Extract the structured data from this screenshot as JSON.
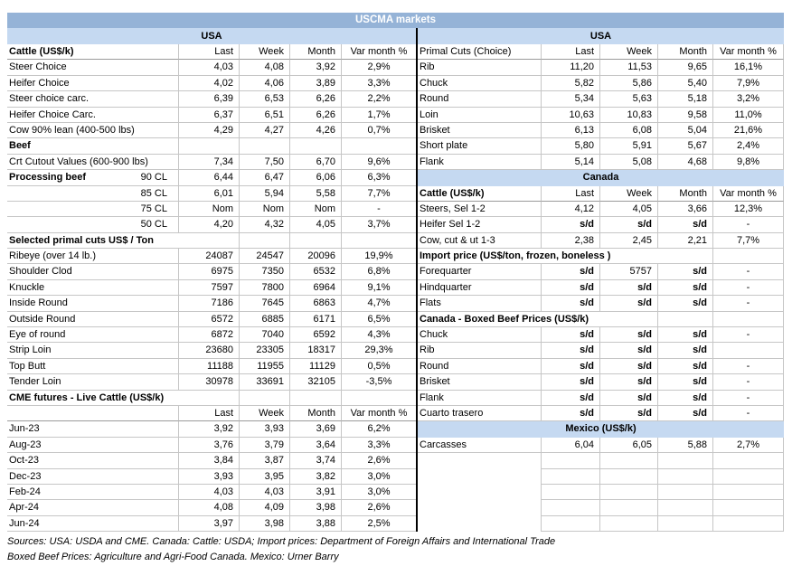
{
  "title": "USCMA markets",
  "colors": {
    "title_bg": "#95B3D7",
    "band_bg": "#C5D9F1",
    "grid": "#C6C6C6",
    "divider": "#000000"
  },
  "column_headers": [
    "Last",
    "Week",
    "Month",
    "Var month %"
  ],
  "left": {
    "band": "USA",
    "rows": [
      {
        "t": "cols",
        "label": "Cattle (US$/k)",
        "bold": true
      },
      {
        "t": "data",
        "label": "Steer Choice",
        "cells": [
          "4,03",
          "4,08",
          "3,92",
          "2,9%"
        ]
      },
      {
        "t": "data",
        "label": "Heifer Choice",
        "cells": [
          "4,02",
          "4,06",
          "3,89",
          "3,3%"
        ]
      },
      {
        "t": "data",
        "label": "Steer choice carc.",
        "cells": [
          "6,39",
          "6,53",
          "6,26",
          "2,2%"
        ]
      },
      {
        "t": "data",
        "label": "Heifer Choice Carc.",
        "cells": [
          "6,37",
          "6,51",
          "6,26",
          "1,7%"
        ]
      },
      {
        "t": "data",
        "label": "Cow 90% lean (400-500 lbs)",
        "cells": [
          "4,29",
          "4,27",
          "4,26",
          "0,7%"
        ]
      },
      {
        "t": "section",
        "label": "Beef",
        "span": 0
      },
      {
        "t": "data",
        "label": "Crt Cutout Values (600-900 lbs)",
        "cells": [
          "7,34",
          "7,50",
          "6,70",
          "9,6%"
        ]
      },
      {
        "t": "data",
        "label": "Processing beef",
        "bold": true,
        "sub": "90 CL",
        "cells": [
          "6,44",
          "6,47",
          "6,06",
          "6,3%"
        ]
      },
      {
        "t": "data",
        "label": "",
        "sub": "85 CL",
        "cells": [
          "6,01",
          "5,94",
          "5,58",
          "7,7%"
        ]
      },
      {
        "t": "data",
        "label": "",
        "sub": "75 CL",
        "cells": [
          "Nom",
          "Nom",
          "Nom",
          "-"
        ]
      },
      {
        "t": "data",
        "label": "",
        "sub": "50 CL",
        "cells": [
          "4,20",
          "4,32",
          "4,05",
          "3,7%"
        ]
      },
      {
        "t": "section",
        "label": "Selected primal cuts US$ / Ton",
        "span": 1
      },
      {
        "t": "data",
        "label": "Ribeye (over 14 lb.)",
        "cells": [
          "24087",
          "24547",
          "20096",
          "19,9%"
        ]
      },
      {
        "t": "data",
        "label": "Shoulder Clod",
        "cells": [
          "6975",
          "7350",
          "6532",
          "6,8%"
        ]
      },
      {
        "t": "data",
        "label": "Knuckle",
        "cells": [
          "7597",
          "7800",
          "6964",
          "9,1%"
        ]
      },
      {
        "t": "data",
        "label": "Inside Round",
        "cells": [
          "7186",
          "7645",
          "6863",
          "4,7%"
        ]
      },
      {
        "t": "data",
        "label": "Outside Round",
        "cells": [
          "6572",
          "6885",
          "6171",
          "6,5%"
        ]
      },
      {
        "t": "data",
        "label": "Eye of round",
        "cells": [
          "6872",
          "7040",
          "6592",
          "4,3%"
        ]
      },
      {
        "t": "data",
        "label": "Strip Loin",
        "cells": [
          "23680",
          "23305",
          "18317",
          "29,3%"
        ]
      },
      {
        "t": "data",
        "label": "Top Butt",
        "cells": [
          "11188",
          "11955",
          "11129",
          "0,5%"
        ]
      },
      {
        "t": "data",
        "label": "Tender Loin",
        "cells": [
          "30978",
          "33691",
          "32105",
          "-3,5%"
        ]
      },
      {
        "t": "section",
        "label": "CME futures - Live Cattle (US$/k)",
        "span": 1
      },
      {
        "t": "cols",
        "label": "",
        "bold": false
      },
      {
        "t": "data",
        "label": "Jun-23",
        "cells": [
          "3,92",
          "3,93",
          "3,69",
          "6,2%"
        ]
      },
      {
        "t": "data",
        "label": "Aug-23",
        "cells": [
          "3,76",
          "3,79",
          "3,64",
          "3,3%"
        ]
      },
      {
        "t": "data",
        "label": "Oct-23",
        "cells": [
          "3,84",
          "3,87",
          "3,74",
          "2,6%"
        ]
      },
      {
        "t": "data",
        "label": "Dec-23",
        "cells": [
          "3,93",
          "3,95",
          "3,82",
          "3,0%"
        ]
      },
      {
        "t": "data",
        "label": "Feb-24",
        "cells": [
          "4,03",
          "4,03",
          "3,91",
          "3,0%"
        ]
      },
      {
        "t": "data",
        "label": "Apr-24",
        "cells": [
          "4,08",
          "4,09",
          "3,98",
          "2,6%"
        ]
      },
      {
        "t": "data",
        "label": "Jun-24",
        "cells": [
          "3,97",
          "3,98",
          "3,88",
          "2,5%"
        ]
      }
    ]
  },
  "right": {
    "band": "USA",
    "rows": [
      {
        "t": "cols",
        "label": "Primal Cuts (Choice)",
        "bold": false
      },
      {
        "t": "data",
        "label": "Rib",
        "cells": [
          "11,20",
          "11,53",
          "9,65",
          "16,1%"
        ]
      },
      {
        "t": "data",
        "label": "Chuck",
        "cells": [
          "5,82",
          "5,86",
          "5,40",
          "7,9%"
        ]
      },
      {
        "t": "data",
        "label": "Round",
        "cells": [
          "5,34",
          "5,63",
          "5,18",
          "3,2%"
        ]
      },
      {
        "t": "data",
        "label": "Loin",
        "cells": [
          "10,63",
          "10,83",
          "9,58",
          "11,0%"
        ]
      },
      {
        "t": "data",
        "label": "Brisket",
        "cells": [
          "6,13",
          "6,08",
          "5,04",
          "21,6%"
        ]
      },
      {
        "t": "data",
        "label": "Short plate",
        "cells": [
          "5,80",
          "5,91",
          "5,67",
          "2,4%"
        ]
      },
      {
        "t": "data",
        "label": "Flank",
        "cells": [
          "5,14",
          "5,08",
          "4,68",
          "9,8%"
        ]
      },
      {
        "t": "band",
        "label": "Canada"
      },
      {
        "t": "cols",
        "label": "Cattle (US$/k)",
        "bold": true
      },
      {
        "t": "data",
        "label": "Steers, Sel 1-2",
        "cells": [
          "4,12",
          "4,05",
          "3,66",
          "12,3%"
        ]
      },
      {
        "t": "data",
        "label": "Heifer Sel 1-2",
        "cells": [
          "s/d",
          "s/d",
          "s/d",
          "-"
        ]
      },
      {
        "t": "data",
        "label": "Cow, cut & ut 1-3",
        "cells": [
          "2,38",
          "2,45",
          "2,21",
          "7,7%"
        ]
      },
      {
        "t": "section",
        "label": "Import price (US$/ton, frozen, boneless )",
        "span": 3
      },
      {
        "t": "data",
        "label": "Forequarter",
        "cells": [
          "s/d",
          "5757",
          "s/d",
          "-"
        ]
      },
      {
        "t": "data",
        "label": "Hindquarter",
        "cells": [
          "s/d",
          "s/d",
          "s/d",
          "-"
        ]
      },
      {
        "t": "data",
        "label": "Flats",
        "cells": [
          "s/d",
          "s/d",
          "s/d",
          "-"
        ]
      },
      {
        "t": "section",
        "label": "Canada - Boxed Beef Prices (US$/k)",
        "span": 2
      },
      {
        "t": "data",
        "label": "Chuck",
        "cells": [
          "s/d",
          "s/d",
          "s/d",
          "-"
        ]
      },
      {
        "t": "data",
        "label": "Rib",
        "cells": [
          "s/d",
          "s/d",
          "s/d",
          ""
        ]
      },
      {
        "t": "data",
        "label": "Round",
        "cells": [
          "s/d",
          "s/d",
          "s/d",
          "-"
        ]
      },
      {
        "t": "data",
        "label": "Brisket",
        "cells": [
          "s/d",
          "s/d",
          "s/d",
          "-"
        ]
      },
      {
        "t": "data",
        "label": "Flank",
        "cells": [
          "s/d",
          "s/d",
          "s/d",
          "-"
        ]
      },
      {
        "t": "data",
        "label": "Cuarto trasero",
        "cells": [
          "s/d",
          "s/d",
          "s/d",
          "-"
        ]
      },
      {
        "t": "band",
        "label": "Mexico (US$/k)"
      },
      {
        "t": "data",
        "label": "Carcasses",
        "cells": [
          "6,04",
          "6,05",
          "5,88",
          "2,7%"
        ]
      },
      {
        "t": "empty"
      },
      {
        "t": "empty"
      },
      {
        "t": "empty"
      },
      {
        "t": "empty"
      },
      {
        "t": "empty"
      }
    ]
  },
  "footer": {
    "line1": "Sources: USA: USDA and CME. Canada: Cattle: USDA; Import prices: Department of Foreign Affairs and International Trade",
    "line2": "Boxed Beef Prices: Agriculture and Agri-Food Canada. Mexico: Urner Barry"
  }
}
